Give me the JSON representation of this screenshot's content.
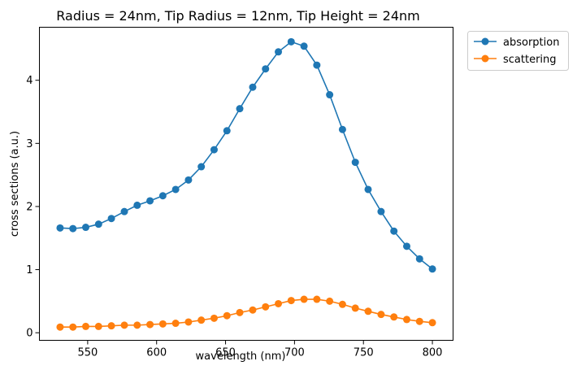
{
  "chart_data": {
    "type": "line",
    "title": "Radius = 24nm, Tip Radius = 12nm, Tip Height = 24nm",
    "xlabel": "wavelength (nm)",
    "ylabel": "cross sections (a.u.)",
    "xlim": [
      515,
      815
    ],
    "ylim": [
      -0.12,
      4.84
    ],
    "xticks": [
      550,
      600,
      650,
      700,
      750,
      800
    ],
    "yticks": [
      0,
      1,
      2,
      3,
      4
    ],
    "grid": false,
    "legend_position": "outside-top-right",
    "x": [
      530,
      539.3,
      548.6,
      557.9,
      567.2,
      576.6,
      585.9,
      595.2,
      604.5,
      613.8,
      623.1,
      632.4,
      641.7,
      651.0,
      660.3,
      669.7,
      679.0,
      688.3,
      697.6,
      706.9,
      716.2,
      725.5,
      734.8,
      744.1,
      753.4,
      762.8,
      772.1,
      781.4,
      790.7,
      800
    ],
    "series": [
      {
        "name": "absorption",
        "color": "#1f77b4",
        "values": [
          1.66,
          1.65,
          1.67,
          1.72,
          1.81,
          1.92,
          2.02,
          2.09,
          2.17,
          2.27,
          2.42,
          2.63,
          2.9,
          3.2,
          3.55,
          3.89,
          4.18,
          4.45,
          4.61,
          4.54,
          4.24,
          3.77,
          3.22,
          2.7,
          2.27,
          1.92,
          1.61,
          1.37,
          1.17,
          1.01
        ]
      },
      {
        "name": "scattering",
        "color": "#ff7f0e",
        "values": [
          0.09,
          0.09,
          0.1,
          0.1,
          0.11,
          0.12,
          0.12,
          0.13,
          0.14,
          0.15,
          0.17,
          0.2,
          0.23,
          0.27,
          0.32,
          0.36,
          0.41,
          0.46,
          0.51,
          0.53,
          0.53,
          0.5,
          0.45,
          0.39,
          0.34,
          0.29,
          0.25,
          0.21,
          0.18,
          0.16
        ]
      }
    ]
  }
}
